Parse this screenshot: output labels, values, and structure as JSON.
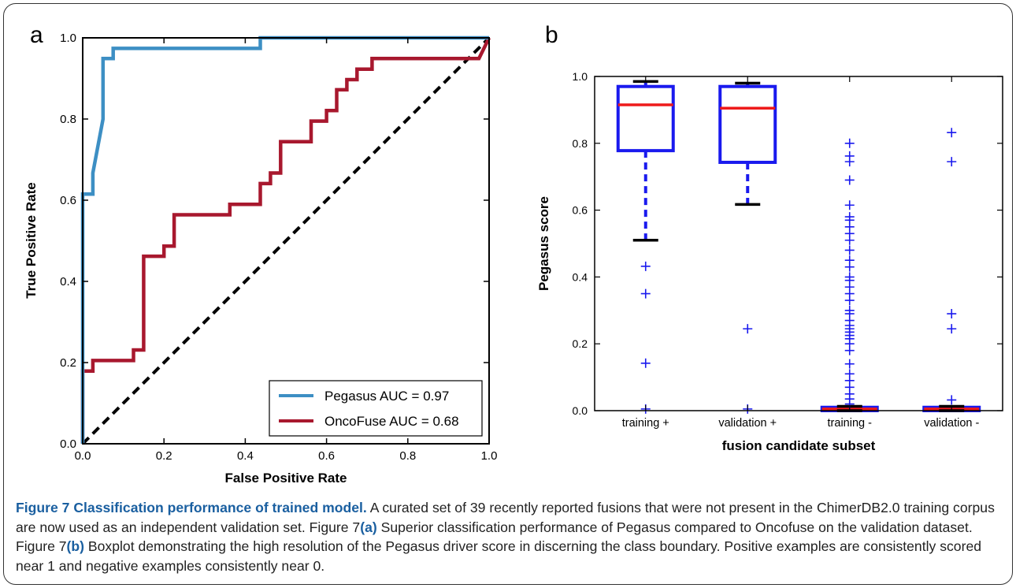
{
  "panels": {
    "a_label": "a",
    "b_label": "b"
  },
  "chart_data": [
    {
      "type": "line",
      "panel": "a",
      "xlabel": "False Positive Rate",
      "ylabel": "True Positive Rate",
      "xlim": [
        0.0,
        1.0
      ],
      "ylim": [
        0.0,
        1.0
      ],
      "xticks": [
        "0.0",
        "0.2",
        "0.4",
        "0.6",
        "0.8",
        "1.0"
      ],
      "yticks": [
        "0.0",
        "0.2",
        "0.4",
        "0.6",
        "0.8",
        "1.0"
      ],
      "legend_position": "lower-right",
      "series": [
        {
          "name": "Pegasus AUC = 0.97",
          "color": "#3d8fc4",
          "points": [
            [
              0,
              0
            ],
            [
              0,
              0.615
            ],
            [
              0.025,
              0.615
            ],
            [
              0.025,
              0.667
            ],
            [
              0.05,
              0.8
            ],
            [
              0.05,
              0.949
            ],
            [
              0.075,
              0.949
            ],
            [
              0.075,
              0.974
            ],
            [
              0.437,
              0.974
            ],
            [
              0.437,
              1.0
            ],
            [
              1.0,
              1.0
            ]
          ]
        },
        {
          "name": "OncoFuse AUC = 0.68",
          "color": "#a8182e",
          "points": [
            [
              0,
              0
            ],
            [
              0,
              0.179
            ],
            [
              0.025,
              0.179
            ],
            [
              0.025,
              0.205
            ],
            [
              0.125,
              0.205
            ],
            [
              0.125,
              0.231
            ],
            [
              0.15,
              0.231
            ],
            [
              0.15,
              0.462
            ],
            [
              0.2,
              0.462
            ],
            [
              0.2,
              0.487
            ],
            [
              0.225,
              0.487
            ],
            [
              0.225,
              0.564
            ],
            [
              0.362,
              0.564
            ],
            [
              0.362,
              0.59
            ],
            [
              0.437,
              0.59
            ],
            [
              0.437,
              0.641
            ],
            [
              0.462,
              0.641
            ],
            [
              0.462,
              0.667
            ],
            [
              0.487,
              0.667
            ],
            [
              0.487,
              0.744
            ],
            [
              0.562,
              0.744
            ],
            [
              0.562,
              0.795
            ],
            [
              0.6,
              0.795
            ],
            [
              0.6,
              0.821
            ],
            [
              0.625,
              0.821
            ],
            [
              0.625,
              0.872
            ],
            [
              0.65,
              0.872
            ],
            [
              0.65,
              0.897
            ],
            [
              0.675,
              0.897
            ],
            [
              0.675,
              0.923
            ],
            [
              0.712,
              0.923
            ],
            [
              0.712,
              0.949
            ],
            [
              0.975,
              0.949
            ],
            [
              1.0,
              1.0
            ]
          ]
        },
        {
          "name": "",
          "color": "#000000",
          "style": "dashed",
          "points": [
            [
              0,
              0
            ],
            [
              1,
              1
            ]
          ]
        }
      ]
    },
    {
      "type": "box",
      "panel": "b",
      "xlabel": "fusion candidate subset",
      "ylabel": "Pegasus score",
      "ylim": [
        0.0,
        1.0
      ],
      "yticks": [
        "0.0",
        "0.2",
        "0.4",
        "0.6",
        "0.8",
        "1.0"
      ],
      "categories": [
        "training +",
        "validation +",
        "training -",
        "validation -"
      ],
      "boxes": [
        {
          "category": "training +",
          "q1": 0.778,
          "median": 0.915,
          "q3": 0.97,
          "whisker_low": 0.51,
          "whisker_high": 0.985,
          "outliers": [
            0.432,
            0.35,
            0.142,
            0.005
          ]
        },
        {
          "category": "validation +",
          "q1": 0.743,
          "median": 0.905,
          "q3": 0.97,
          "whisker_low": 0.617,
          "whisker_high": 0.98,
          "outliers": [
            0.245,
            0.005
          ]
        },
        {
          "category": "training -",
          "q1": 0.0,
          "median": 0.005,
          "q3": 0.01,
          "whisker_low": 0.0,
          "whisker_high": 0.013,
          "outliers": [
            0.8,
            0.762,
            0.745,
            0.69,
            0.615,
            0.58,
            0.57,
            0.55,
            0.53,
            0.51,
            0.48,
            0.45,
            0.43,
            0.4,
            0.39,
            0.37,
            0.35,
            0.33,
            0.3,
            0.29,
            0.27,
            0.255,
            0.245,
            0.235,
            0.225,
            0.215,
            0.2,
            0.18,
            0.14,
            0.11,
            0.09,
            0.07,
            0.05,
            0.035,
            0.02
          ]
        },
        {
          "category": "validation -",
          "q1": 0.0,
          "median": 0.005,
          "q3": 0.01,
          "whisker_low": 0.0,
          "whisker_high": 0.013,
          "outliers": [
            0.832,
            0.745,
            0.29,
            0.245,
            0.032
          ]
        }
      ],
      "colors": {
        "box": "#1a1aee",
        "median": "#ee1a1a",
        "outlier": "#1a1aee",
        "cap": "#000000"
      }
    }
  ],
  "caption": {
    "figure_title": "Figure 7 Classification performance of trained model.",
    "line1_rest": " A curated set of 39 recently reported fusions that were not present in the ChimerDB2.0",
    "line2_a": "training corpus are now used as an independent validation set. Figure 7",
    "ref_a": "(a)",
    "line2_b": " Superior classification performance of Pegasus compared to Oncofuse on",
    "line3_a": "the validation dataset. Figure 7",
    "ref_b": "(b)",
    "line3_b": " Boxplot demonstrating the high resolution of the Pegasus driver score in discerning the class boundary. Positive",
    "line4": "examples are consistently scored near 1 and negative examples consistently near 0."
  }
}
